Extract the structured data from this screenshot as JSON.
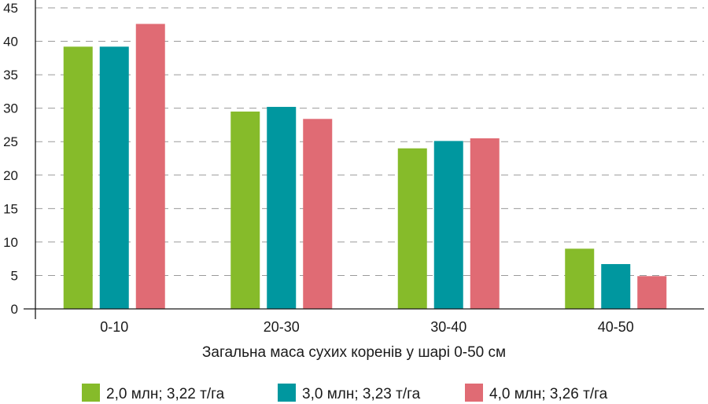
{
  "chart_data": {
    "type": "bar",
    "title": "",
    "xlabel": "Загальна маса сухих коренів у шарі 0-50 см",
    "ylabel": "",
    "ylim": [
      0,
      45
    ],
    "yticks": [
      0,
      5,
      10,
      15,
      20,
      25,
      30,
      35,
      40,
      45
    ],
    "grid": true,
    "legend_position": "bottom",
    "categories": [
      "0-10",
      "20-30",
      "30-40",
      "40-50"
    ],
    "series": [
      {
        "name": "2,0 млн; 3,22 т/га",
        "color": "#86bb2a",
        "values": [
          39.2,
          29.5,
          24.0,
          9.0
        ]
      },
      {
        "name": "3,0 млн; 3,23 т/га",
        "color": "#00979f",
        "values": [
          39.2,
          30.2,
          25.1,
          6.7
        ]
      },
      {
        "name": "4,0 млн; 3,26 т/га",
        "color": "#e06b74",
        "values": [
          42.6,
          28.4,
          25.5,
          4.9
        ]
      }
    ]
  }
}
